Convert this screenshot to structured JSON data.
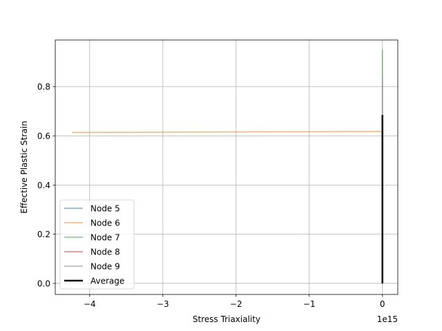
{
  "chart_data": {
    "type": "line",
    "title": "",
    "xlabel": "Stress Triaxiality",
    "ylabel": "Effective Plastic Strain",
    "x_offset_label": "1e15",
    "x_scale_factor": 1000000000000000.0,
    "xlim": [
      -4.47,
      0.21
    ],
    "ylim": [
      -0.045,
      0.99
    ],
    "x_ticks": [
      -4,
      -3,
      -2,
      -1,
      0
    ],
    "x_tick_labels": [
      "−4",
      "−3",
      "−2",
      "−1",
      "0"
    ],
    "y_ticks": [
      0.0,
      0.2,
      0.4,
      0.6,
      0.8
    ],
    "y_tick_labels": [
      "0.0",
      "0.2",
      "0.4",
      "0.6",
      "0.8"
    ],
    "grid": true,
    "legend_position": "lower-left",
    "series": [
      {
        "name": "Node 5",
        "color": "#1f77b4",
        "alpha": 0.6,
        "width": 1.5,
        "points": [
          [
            0,
            0.0
          ],
          [
            0,
            0.62
          ]
        ]
      },
      {
        "name": "Node 6",
        "color": "#ff7f0e",
        "alpha": 0.6,
        "width": 1.5,
        "points": [
          [
            -4.24,
            0.614
          ],
          [
            -3.0,
            0.615
          ],
          [
            -2.0,
            0.616
          ],
          [
            -1.0,
            0.617
          ],
          [
            0,
            0.618
          ],
          [
            0,
            0.0
          ]
        ]
      },
      {
        "name": "Node 7",
        "color": "#2ca02c",
        "alpha": 0.6,
        "width": 1.5,
        "points": [
          [
            0,
            0.0
          ],
          [
            0,
            0.95
          ]
        ]
      },
      {
        "name": "Node 8",
        "color": "#d62728",
        "alpha": 0.6,
        "width": 1.5,
        "points": [
          [
            0,
            0.0
          ],
          [
            0,
            0.68
          ]
        ]
      },
      {
        "name": "Node 9",
        "color": "#9467bd",
        "alpha": 0.6,
        "width": 1.5,
        "points": [
          [
            0,
            0.0
          ],
          [
            0,
            0.84
          ]
        ]
      },
      {
        "name": "Average",
        "color": "#000000",
        "alpha": 1.0,
        "width": 2.5,
        "points": [
          [
            0,
            0.0
          ],
          [
            0,
            0.685
          ]
        ]
      }
    ]
  }
}
